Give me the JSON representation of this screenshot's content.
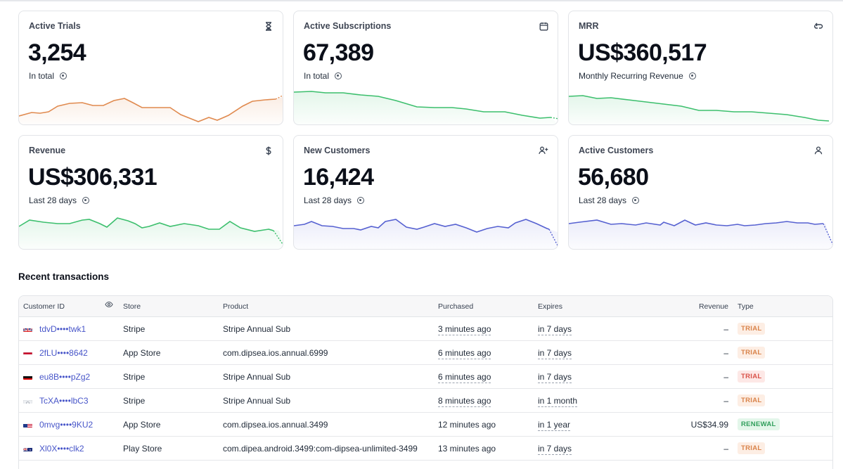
{
  "cards": [
    {
      "title": "Active Trials",
      "value": "3,254",
      "sub": "In total",
      "icon": "hourglass-icon",
      "color": "#e08a4f"
    },
    {
      "title": "Active Subscriptions",
      "value": "67,389",
      "sub": "In total",
      "icon": "calendar-icon",
      "color": "#3cbf6d"
    },
    {
      "title": "MRR",
      "value": "US$360,517",
      "sub": "Monthly Recurring Revenue",
      "icon": "refresh-icon",
      "color": "#3cbf6d"
    },
    {
      "title": "Revenue",
      "value": "US$306,331",
      "sub": "Last 28 days",
      "icon": "dollar-icon",
      "color": "#3cbf6d"
    },
    {
      "title": "New Customers",
      "value": "16,424",
      "sub": "Last 28 days",
      "icon": "user-plus-icon",
      "color": "#5661d1"
    },
    {
      "title": "Active Customers",
      "value": "56,680",
      "sub": "Last 28 days",
      "icon": "user-icon",
      "color": "#5661d1"
    }
  ],
  "section": {
    "title": "Recent transactions"
  },
  "table": {
    "headers": {
      "customer_id": "Customer ID",
      "store": "Store",
      "product": "Product",
      "purchased": "Purchased",
      "expires": "Expires",
      "revenue": "Revenue",
      "type": "Type"
    },
    "rows": [
      {
        "flag": "uk",
        "customer": "tdvD••••twk1",
        "store": "Stripe",
        "product": "Stripe Annual Sub",
        "purchased": "3 minutes ago",
        "expires": "in 7 days",
        "revenue": "–",
        "type": "TRIAL",
        "badge": "trial"
      },
      {
        "flag": "nl",
        "customer": "2fLU••••8642",
        "store": "App Store",
        "product": "com.dipsea.ios.annual.6999",
        "purchased": "6 minutes ago",
        "expires": "in 7 days",
        "revenue": "–",
        "type": "TRIAL",
        "badge": "trial"
      },
      {
        "flag": "de",
        "customer": "eu8B••••pZg2",
        "store": "Stripe",
        "product": "Stripe Annual Sub",
        "purchased": "6 minutes ago",
        "expires": "in 7 days",
        "revenue": "–",
        "type": "TRIAL",
        "badge": "trial-red"
      },
      {
        "flag": "gen",
        "customer": "TcXA••••lbC3",
        "store": "Stripe",
        "product": "Stripe Annual Sub",
        "purchased": "8 minutes ago",
        "expires": "in 1 month",
        "revenue": "–",
        "type": "TRIAL",
        "badge": "trial"
      },
      {
        "flag": "us",
        "customer": "0mvg••••9KU2",
        "store": "App Store",
        "product": "com.dipsea.ios.annual.3499",
        "purchased": "12 minutes ago",
        "expires": "in 1 year",
        "revenue": "US$34.99",
        "type": "RENEWAL",
        "badge": "renewal"
      },
      {
        "flag": "au",
        "customer": "Xl0X••••clk2",
        "store": "Play Store",
        "product": "com.dipea.android.3499:com-dipsea-unlimited-3499",
        "purchased": "13 minutes ago",
        "expires": "in 7 days",
        "revenue": "–",
        "type": "TRIAL",
        "badge": "trial"
      }
    ]
  }
}
